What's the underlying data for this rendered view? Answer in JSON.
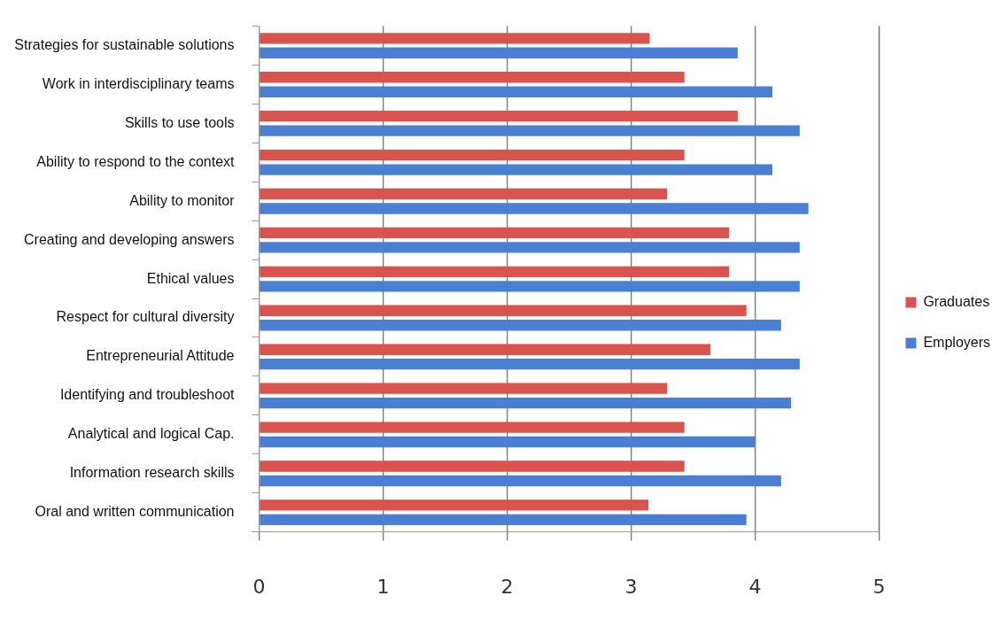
{
  "chart_data": {
    "type": "bar",
    "orientation": "horizontal",
    "categories": [
      "Strategies for sustainable solutions",
      "Work in interdisciplinary teams",
      "Skills to use tools",
      "Ability to respond to the context",
      "Ability to monitor",
      "Creating and developing answers",
      "Ethical values",
      "Respect for cultural diversity",
      "Entrepreneurial Attitude",
      "Identifying and troubleshoot",
      "Analytical and logical Cap.",
      "Information research skills",
      "Oral and written communication"
    ],
    "series": [
      {
        "name": "Graduates",
        "color": "#d9534f",
        "values": [
          3.15,
          3.43,
          3.86,
          3.43,
          3.29,
          3.79,
          3.79,
          3.93,
          3.64,
          3.29,
          3.43,
          3.43,
          3.14
        ]
      },
      {
        "name": "Employers",
        "color": "#4a7fd4",
        "values": [
          3.86,
          4.14,
          4.36,
          4.14,
          4.43,
          4.36,
          4.36,
          4.21,
          4.36,
          4.29,
          4.0,
          4.21,
          3.93
        ]
      }
    ],
    "xlim": [
      0,
      5
    ],
    "xticks": [
      0,
      1,
      2,
      3,
      4,
      5
    ],
    "grid": "x",
    "legend": "right"
  }
}
